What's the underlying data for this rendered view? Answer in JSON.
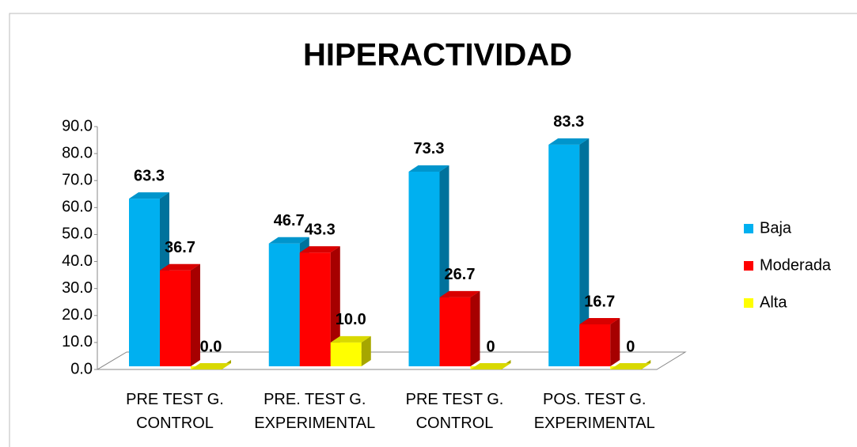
{
  "chart_data": {
    "type": "bar3d",
    "title": "HIPERACTIVIDAD",
    "categories": [
      "PRE TEST G. CONTROL",
      "PRE. TEST G. EXPERIMENTAL",
      "PRE TEST G. CONTROL",
      "POS. TEST G. EXPERIMENTAL"
    ],
    "series": [
      {
        "name": "Baja",
        "color": "#00b0f0",
        "values": [
          63.3,
          46.7,
          73.3,
          83.3
        ],
        "value_labels": [
          "63.3",
          "46.7",
          "73.3",
          "83.3"
        ]
      },
      {
        "name": "Moderada",
        "color": "#ff0000",
        "values": [
          36.7,
          43.3,
          26.7,
          16.7
        ],
        "value_labels": [
          "36.7",
          "43.3",
          "26.7",
          "16.7"
        ]
      },
      {
        "name": "Alta",
        "color": "#ffff00",
        "values": [
          0,
          10,
          0,
          0
        ],
        "value_labels": [
          "0.0",
          "10.0",
          "0",
          "0"
        ]
      }
    ],
    "ylim": [
      0,
      90
    ],
    "yticks": [
      {
        "value": 0,
        "label": "0.0"
      },
      {
        "value": 10,
        "label": "10.0"
      },
      {
        "value": 20,
        "label": "20.0"
      },
      {
        "value": 30,
        "label": "30.0"
      },
      {
        "value": 40,
        "label": "40.0"
      },
      {
        "value": 50,
        "label": "50.0"
      },
      {
        "value": 60,
        "label": "60.0"
      },
      {
        "value": 70,
        "label": "70.0"
      },
      {
        "value": 80,
        "label": "80.0"
      },
      {
        "value": 90,
        "label": "90.0"
      }
    ],
    "legend": "right"
  }
}
